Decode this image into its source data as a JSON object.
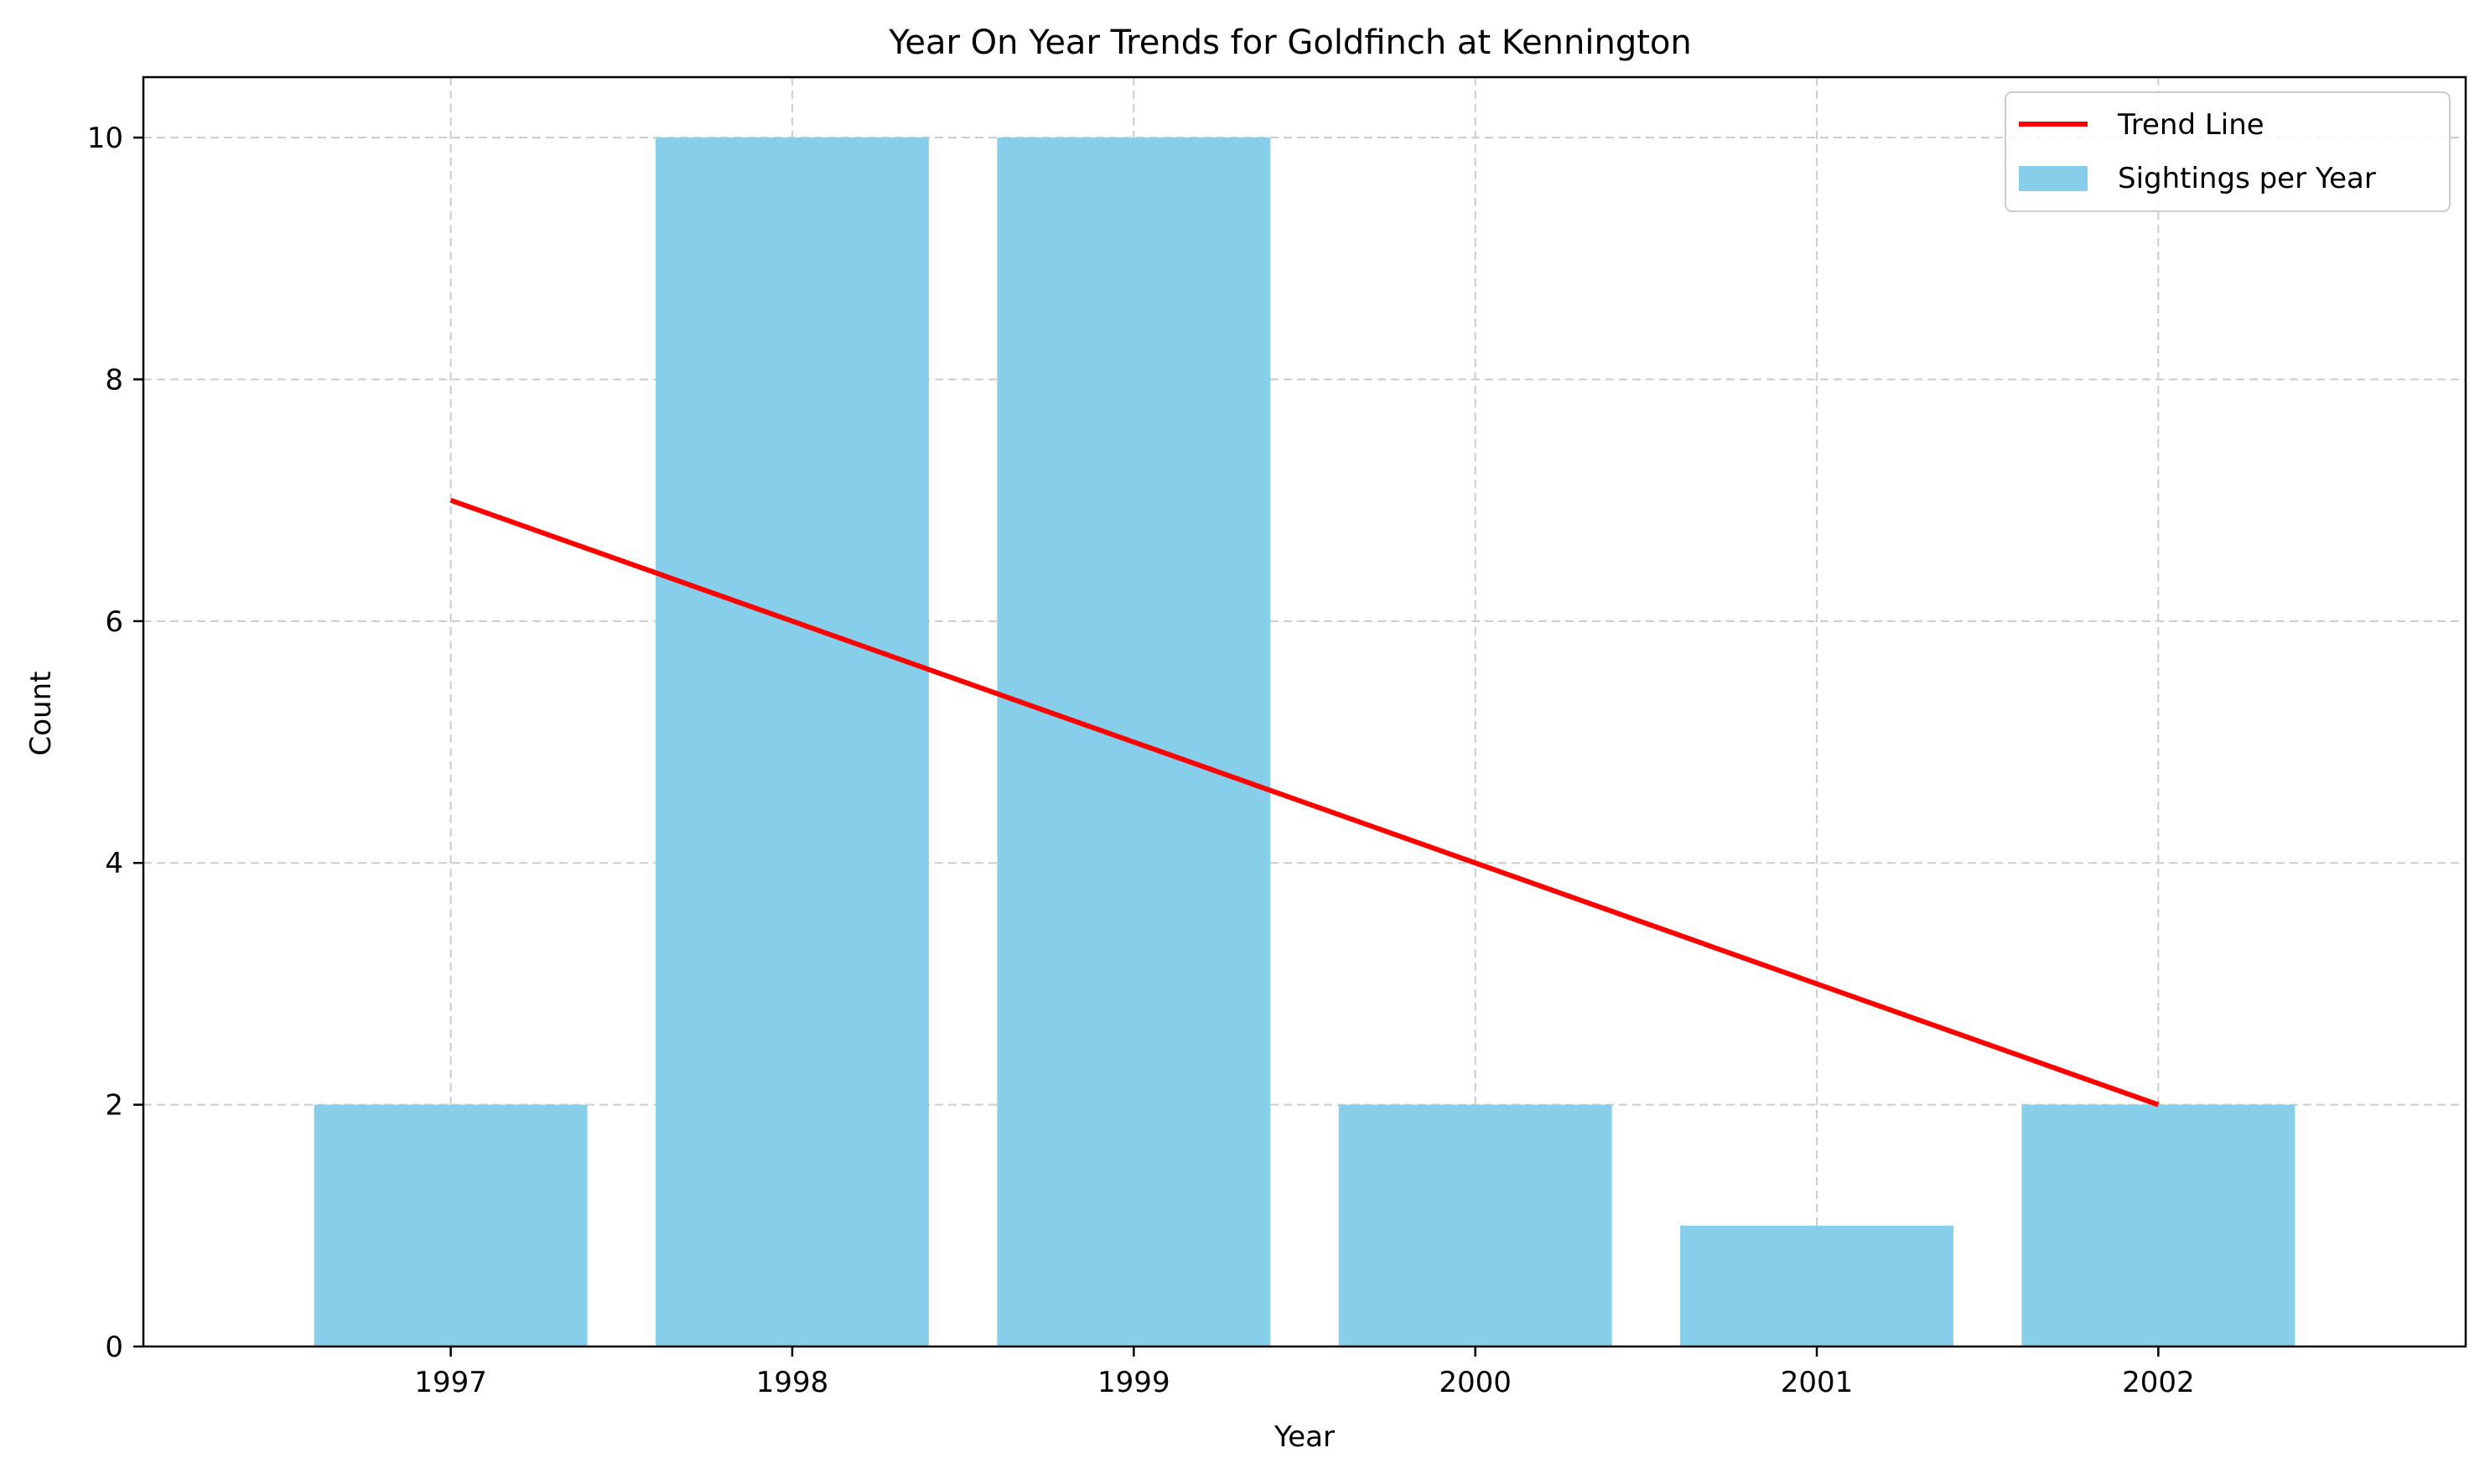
{
  "chart_data": {
    "type": "bar",
    "title": "Year On Year Trends for Goldfinch at Kennington",
    "xlabel": "Year",
    "ylabel": "Count",
    "categories": [
      "1997",
      "1998",
      "1999",
      "2000",
      "2001",
      "2002"
    ],
    "series": [
      {
        "name": "Sightings per Year",
        "type": "bar",
        "values": [
          2,
          10,
          10,
          2,
          1,
          2
        ],
        "color": "#87CEEB"
      },
      {
        "name": "Trend Line",
        "type": "line",
        "values": [
          7,
          6,
          5,
          4,
          3,
          2
        ],
        "color": "#FF0000"
      }
    ],
    "ylim": [
      0,
      10.5
    ],
    "yticks": [
      0,
      2,
      4,
      6,
      8,
      10
    ],
    "grid": true,
    "legend_position": "top-right"
  },
  "colors": {
    "bar": "#87CEEB",
    "trend": "#FF0000",
    "grid": "#cccccc",
    "axis": "#000000"
  }
}
